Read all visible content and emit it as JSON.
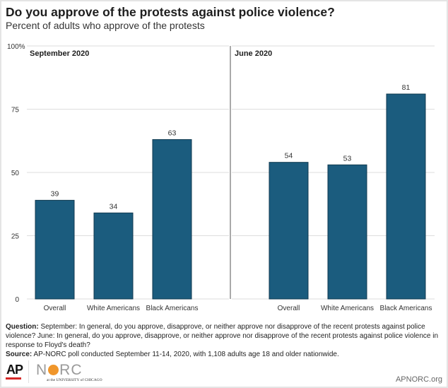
{
  "title": "Do you approve of the protests against police violence?",
  "subtitle": "Percent of adults who approve of the protests",
  "colors": {
    "bar": "#1b5c7e",
    "bar_edge": "#103a50",
    "grid": "#dddddd",
    "divider": "#555555",
    "text": "#333333"
  },
  "chart_data": [
    {
      "type": "bar",
      "panel_title": "September 2020",
      "categories": [
        "Overall",
        "White Americans",
        "Black Americans"
      ],
      "values": [
        39,
        34,
        63
      ],
      "ylabel": "",
      "xlabel": "",
      "ylim": [
        0,
        100
      ],
      "yticks": [
        0,
        25,
        50,
        75,
        100
      ],
      "ytick_labels": [
        "0",
        "25",
        "50",
        "75",
        "100%"
      ],
      "grid": true
    },
    {
      "type": "bar",
      "panel_title": "June 2020",
      "categories": [
        "Overall",
        "White Americans",
        "Black Americans"
      ],
      "values": [
        54,
        53,
        81
      ],
      "ylabel": "",
      "xlabel": "",
      "ylim": [
        0,
        100
      ],
      "grid": true
    }
  ],
  "notes": {
    "question_label": "Question:",
    "question_text": " September: In general, do you approve, disapprove, or neither approve nor disapprove of the recent protests against police violence? June: In general, do you approve, disapprove, or neither approve nor disapprove of the recent protests against police violence in response to Floyd's death?",
    "source_label": "Source:",
    "source_text": " AP-NORC poll conducted September 11-14, 2020, with 1,108 adults age 18 and older nationwide."
  },
  "logos": {
    "ap": "AP",
    "norc_n": "N",
    "norc_rc": "RC",
    "uchicago": "at the UNIVERSITY of CHICAGO"
  },
  "site": "APNORC.org"
}
